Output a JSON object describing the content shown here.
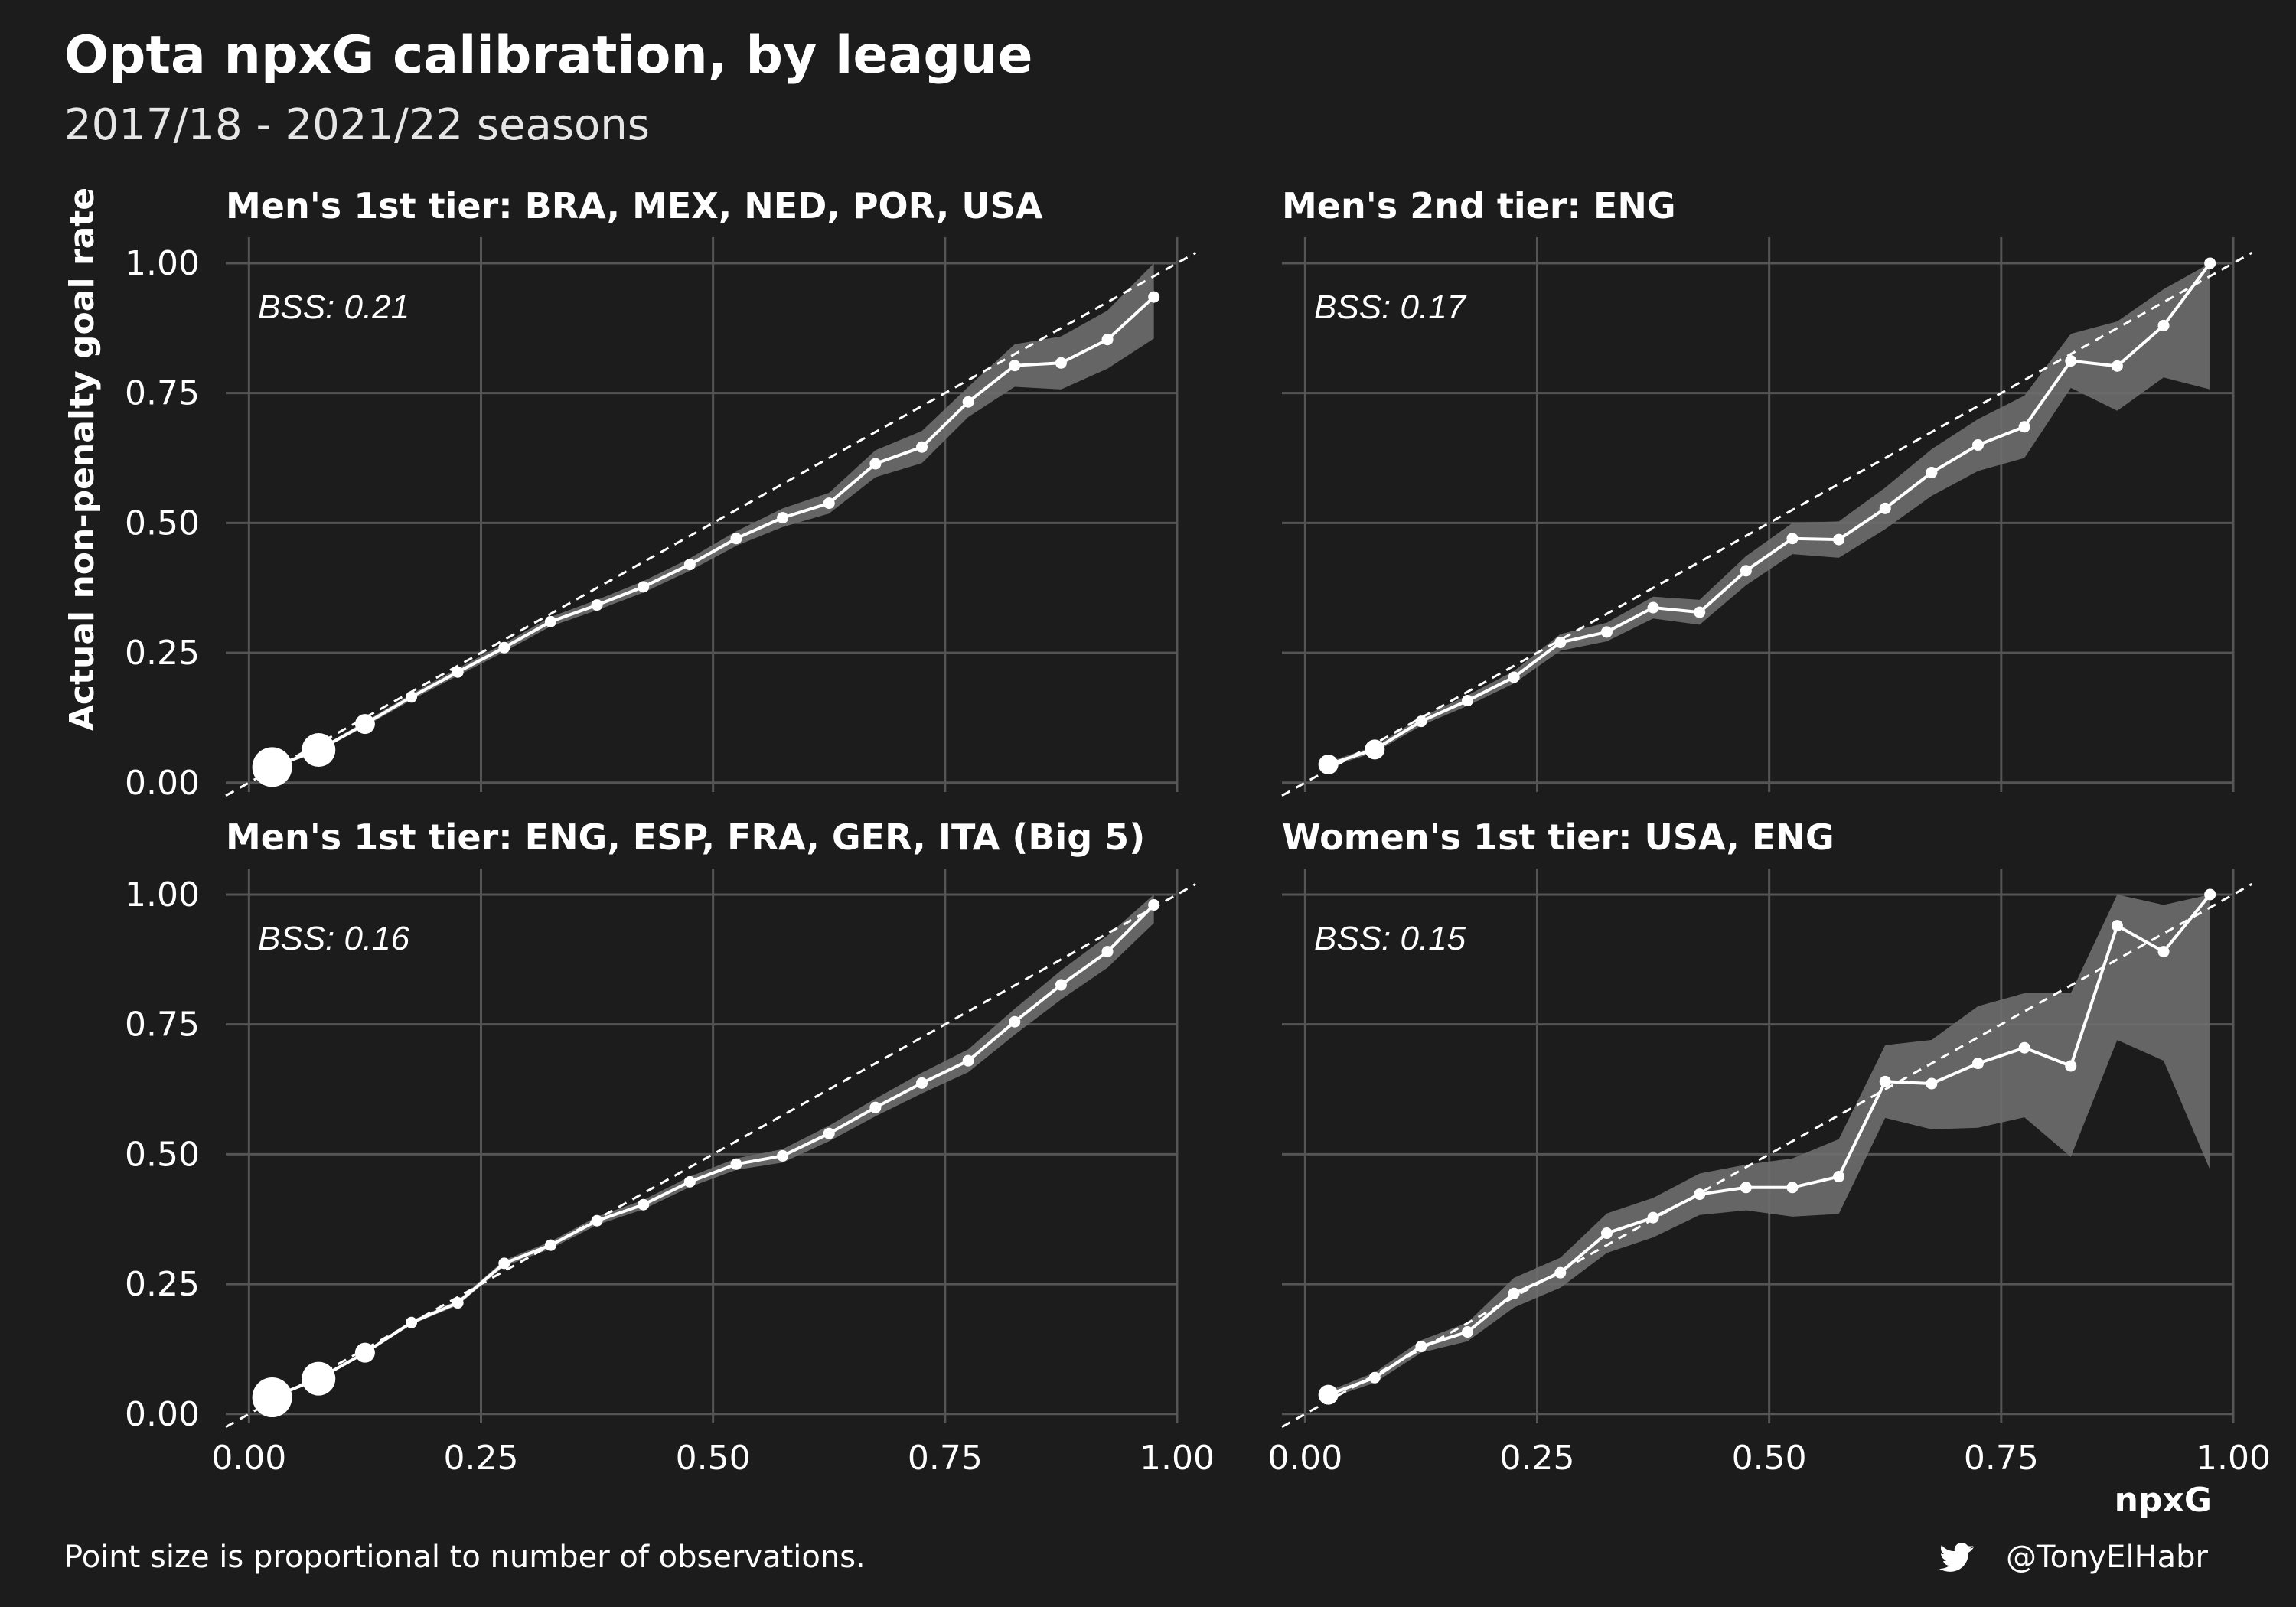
{
  "title": "Opta npxG calibration, by league",
  "subtitle": "2017/18 - 2021/22 seasons",
  "caption_left": "Point size is proportional to number of observations.",
  "caption_right": "@TonyElHabr",
  "caption_icon": "twitter-bird-icon",
  "colors": {
    "background": "#1c1c1c",
    "grid": "#555555",
    "line": "#ffffff",
    "ribbon": "#6e6e6e",
    "reference": "#ffffff"
  },
  "chart_data": {
    "type": "line",
    "xlabel": "npxG",
    "ylabel": "Actual non-penalty goal rate",
    "xlim": [
      0,
      1
    ],
    "ylim": [
      0,
      1
    ],
    "x_ticks": [
      "0.00",
      "0.25",
      "0.50",
      "0.75",
      "1.00"
    ],
    "y_ticks": [
      "0.00",
      "0.25",
      "0.50",
      "0.75",
      "1.00"
    ],
    "grid": true,
    "reference_line": "y = x (dashed)",
    "x": [
      0.025,
      0.075,
      0.125,
      0.175,
      0.225,
      0.275,
      0.325,
      0.375,
      0.425,
      0.475,
      0.525,
      0.575,
      0.625,
      0.675,
      0.725,
      0.775,
      0.825,
      0.875,
      0.925,
      0.975
    ],
    "panels": [
      {
        "strip": "Men's 1st tier: BRA, MEX, NED, POR, USA",
        "bss": "BSS: 0.21",
        "y": [
          0.03,
          0.063,
          0.113,
          0.165,
          0.213,
          0.26,
          0.31,
          0.342,
          0.377,
          0.42,
          0.47,
          0.51,
          0.538,
          0.614,
          0.646,
          0.733,
          0.803,
          0.808,
          0.853,
          0.935
        ],
        "lower": [
          0.026,
          0.06,
          0.108,
          0.159,
          0.206,
          0.252,
          0.301,
          0.332,
          0.366,
          0.408,
          0.456,
          0.492,
          0.518,
          0.588,
          0.615,
          0.704,
          0.762,
          0.757,
          0.797,
          0.855
        ],
        "upper": [
          0.034,
          0.066,
          0.118,
          0.171,
          0.22,
          0.268,
          0.319,
          0.352,
          0.388,
          0.432,
          0.484,
          0.528,
          0.558,
          0.64,
          0.677,
          0.762,
          0.844,
          0.859,
          0.909,
          1.0
        ],
        "size": [
          5,
          4,
          3,
          2,
          2,
          2,
          2,
          2,
          2,
          2,
          2,
          2,
          2,
          2,
          2,
          2,
          2,
          2,
          2,
          2
        ]
      },
      {
        "strip": "Men's 2nd tier: ENG",
        "bss": "BSS: 0.17",
        "y": [
          0.035,
          0.064,
          0.118,
          0.158,
          0.203,
          0.27,
          0.29,
          0.337,
          0.328,
          0.408,
          0.47,
          0.468,
          0.528,
          0.597,
          0.65,
          0.685,
          0.812,
          0.802,
          0.88,
          1.0
        ],
        "lower": [
          0.03,
          0.058,
          0.11,
          0.148,
          0.191,
          0.254,
          0.272,
          0.316,
          0.304,
          0.38,
          0.44,
          0.433,
          0.488,
          0.552,
          0.6,
          0.625,
          0.76,
          0.716,
          0.78,
          0.757
        ],
        "upper": [
          0.04,
          0.07,
          0.126,
          0.168,
          0.215,
          0.286,
          0.308,
          0.358,
          0.352,
          0.436,
          0.5,
          0.503,
          0.568,
          0.642,
          0.7,
          0.745,
          0.864,
          0.888,
          0.95,
          1.0
        ],
        "size": [
          3,
          3,
          2,
          2,
          2,
          2,
          2,
          2,
          2,
          2,
          2,
          2,
          2,
          2,
          2,
          2,
          2,
          2,
          2,
          2
        ]
      },
      {
        "strip": "Men's 1st tier: ENG, ESP, FRA, GER, ITA (Big 5)",
        "bss": "BSS: 0.16",
        "y": [
          0.032,
          0.068,
          0.118,
          0.176,
          0.214,
          0.29,
          0.325,
          0.372,
          0.403,
          0.447,
          0.481,
          0.497,
          0.54,
          0.59,
          0.637,
          0.68,
          0.755,
          0.826,
          0.89,
          0.98
        ],
        "lower": [
          0.03,
          0.066,
          0.115,
          0.172,
          0.209,
          0.284,
          0.318,
          0.364,
          0.394,
          0.437,
          0.47,
          0.484,
          0.525,
          0.573,
          0.617,
          0.658,
          0.73,
          0.798,
          0.859,
          0.945
        ],
        "upper": [
          0.034,
          0.07,
          0.121,
          0.18,
          0.219,
          0.296,
          0.332,
          0.38,
          0.412,
          0.457,
          0.492,
          0.51,
          0.555,
          0.607,
          0.657,
          0.702,
          0.78,
          0.854,
          0.921,
          1.0
        ],
        "size": [
          5,
          4,
          3,
          2,
          2,
          2,
          2,
          2,
          2,
          2,
          2,
          2,
          2,
          2,
          2,
          2,
          2,
          2,
          2,
          2
        ]
      },
      {
        "strip": "Women's 1st tier: USA, ENG",
        "bss": "BSS: 0.15",
        "y": [
          0.037,
          0.07,
          0.13,
          0.158,
          0.232,
          0.272,
          0.348,
          0.378,
          0.423,
          0.436,
          0.436,
          0.457,
          0.64,
          0.636,
          0.675,
          0.705,
          0.67,
          0.94,
          0.89,
          1.0
        ],
        "lower": [
          0.03,
          0.06,
          0.118,
          0.14,
          0.205,
          0.243,
          0.31,
          0.34,
          0.383,
          0.392,
          0.38,
          0.385,
          0.57,
          0.548,
          0.551,
          0.571,
          0.495,
          0.72,
          0.68,
          0.47
        ],
        "upper": [
          0.044,
          0.08,
          0.142,
          0.176,
          0.262,
          0.301,
          0.386,
          0.416,
          0.463,
          0.48,
          0.492,
          0.529,
          0.71,
          0.72,
          0.785,
          0.81,
          0.81,
          1.0,
          0.98,
          1.0
        ],
        "size": [
          3,
          2,
          2,
          2,
          2,
          2,
          2,
          2,
          2,
          2,
          2,
          2,
          2,
          2,
          2,
          2,
          2,
          2,
          2,
          2
        ]
      }
    ]
  }
}
